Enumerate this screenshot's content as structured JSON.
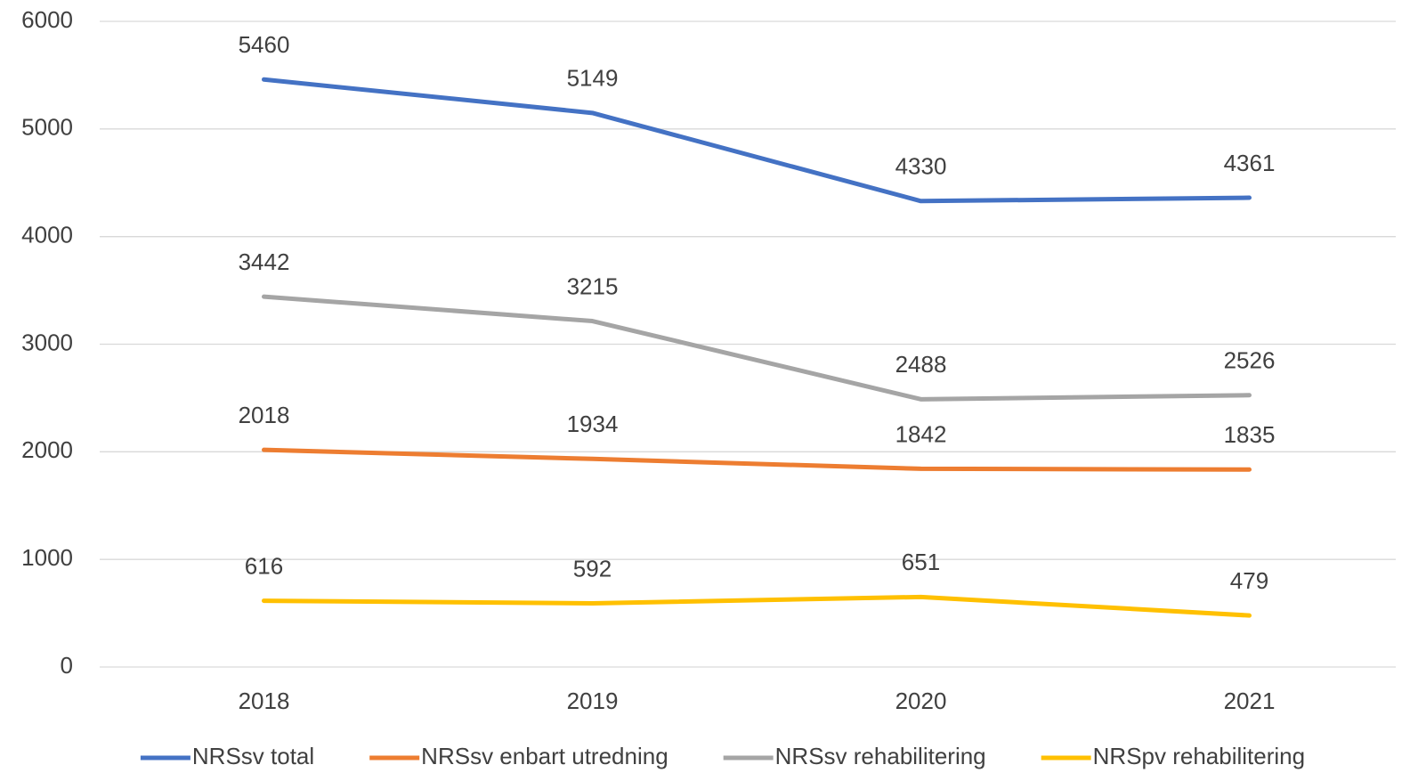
{
  "chart_data": {
    "type": "line",
    "categories": [
      "2018",
      "2019",
      "2020",
      "2021"
    ],
    "series": [
      {
        "name": "NRSsv total",
        "color": "#4472c4",
        "values": [
          5460,
          5149,
          4330,
          4361
        ]
      },
      {
        "name": "NRSsv enbart utredning",
        "color": "#ed7d31",
        "values": [
          2018,
          1934,
          1842,
          1835
        ]
      },
      {
        "name": "NRSsv rehabilitering",
        "color": "#a5a5a5",
        "values": [
          3442,
          3215,
          2488,
          2526
        ]
      },
      {
        "name": "NRSpv rehabilitering",
        "color": "#ffc000",
        "values": [
          616,
          592,
          651,
          479
        ]
      }
    ],
    "ylim": [
      0,
      6000
    ],
    "yticks": [
      0,
      1000,
      2000,
      3000,
      4000,
      5000,
      6000
    ],
    "grid": true,
    "legend": "bottom"
  }
}
